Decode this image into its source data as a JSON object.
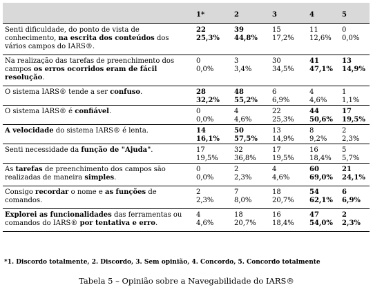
{
  "header": {
    "empty": "",
    "cols": [
      "1*",
      "2",
      "3",
      "4",
      "5"
    ]
  },
  "rows": [
    {
      "parts": [
        {
          "t": "Senti dificuldade, do ponto de vista de conhecimento, ",
          "b": false
        },
        {
          "t": "na escrita dos conteúdos",
          "b": true
        },
        {
          "t": " dos vários campos do IARS®.",
          "b": false
        }
      ],
      "cells": [
        {
          "n": "22",
          "p": "25,3%",
          "bold": true
        },
        {
          "n": "39",
          "p": "44,8%",
          "bold": true
        },
        {
          "n": "15",
          "p": "17,2%",
          "bold": false
        },
        {
          "n": "11",
          "p": "12,6%",
          "bold": false
        },
        {
          "n": "0",
          "p": "0,0%",
          "bold": false
        }
      ]
    },
    {
      "parts": [
        {
          "t": "Na realização das tarefas de preenchimento dos campos ",
          "b": false
        },
        {
          "t": "os erros ocorridos eram de fácil resolução",
          "b": true
        },
        {
          "t": ".",
          "b": false
        }
      ],
      "cells": [
        {
          "n": "0",
          "p": "0,0%",
          "bold": false
        },
        {
          "n": "3",
          "p": "3,4%",
          "bold": false
        },
        {
          "n": "30",
          "p": "34,5%",
          "bold": false
        },
        {
          "n": "41",
          "p": "47,1%",
          "bold": true
        },
        {
          "n": "13",
          "p": "14,9%",
          "bold": true
        }
      ]
    },
    {
      "parts": [
        {
          "t": "O sistema IARS® tende a ser ",
          "b": false
        },
        {
          "t": "confuso",
          "b": true
        },
        {
          "t": ".",
          "b": false
        }
      ],
      "cells": [
        {
          "n": "28",
          "p": "32,2%",
          "bold": true
        },
        {
          "n": "48",
          "p": "55,2%",
          "bold": true
        },
        {
          "n": "6",
          "p": "6,9%",
          "bold": false
        },
        {
          "n": "4",
          "p": "4,6%",
          "bold": false
        },
        {
          "n": "1",
          "p": "1,1%",
          "bold": false
        }
      ]
    },
    {
      "parts": [
        {
          "t": "O sistema IARS® é ",
          "b": false
        },
        {
          "t": "confiável",
          "b": true
        },
        {
          "t": ".",
          "b": false
        }
      ],
      "cells": [
        {
          "n": "0",
          "p": "0,0%",
          "bold": false
        },
        {
          "n": "4",
          "p": "4,6%",
          "bold": false
        },
        {
          "n": "22",
          "p": "25,3%",
          "bold": false
        },
        {
          "n": "44",
          "p": "50,6%",
          "bold": true
        },
        {
          "n": "17",
          "p": "19,5%",
          "bold": true
        }
      ]
    },
    {
      "parts": [
        {
          "t": "A velocidade",
          "b": true
        },
        {
          "t": " do sistema IARS® é lenta.",
          "b": false
        }
      ],
      "cells": [
        {
          "n": "14",
          "p": "16,1%",
          "bold": true
        },
        {
          "n": "50",
          "p": "57,5%",
          "bold": true
        },
        {
          "n": "13",
          "p": "14,9%",
          "bold": false
        },
        {
          "n": "8",
          "p": "9,2%",
          "bold": false
        },
        {
          "n": "2",
          "p": "2,3%",
          "bold": false
        }
      ]
    },
    {
      "parts": [
        {
          "t": "Senti necessidade da ",
          "b": false
        },
        {
          "t": "função de \"Ajuda\"",
          "b": true
        },
        {
          "t": ".",
          "b": false
        }
      ],
      "cells": [
        {
          "n": "17",
          "p": "19,5%",
          "bold": false
        },
        {
          "n": "32",
          "p": "36,8%",
          "bold": false
        },
        {
          "n": "17",
          "p": "19,5%",
          "bold": false
        },
        {
          "n": "16",
          "p": "18,4%",
          "bold": false
        },
        {
          "n": "5",
          "p": "5,7%",
          "bold": false
        }
      ]
    },
    {
      "parts": [
        {
          "t": "As ",
          "b": false
        },
        {
          "t": "tarefas",
          "b": true
        },
        {
          "t": " de preenchimento dos campos são realizadas de maneira ",
          "b": false
        },
        {
          "t": "simples",
          "b": true
        },
        {
          "t": ".",
          "b": false
        }
      ],
      "cells": [
        {
          "n": "0",
          "p": "0,0%",
          "bold": false
        },
        {
          "n": "2",
          "p": "2,3%",
          "bold": false
        },
        {
          "n": "4",
          "p": "4,6%",
          "bold": false
        },
        {
          "n": "60",
          "p": "69,0%",
          "bold": true
        },
        {
          "n": "21",
          "p": "24,1%",
          "bold": true
        }
      ]
    },
    {
      "parts": [
        {
          "t": "Consigo ",
          "b": false
        },
        {
          "t": "recordar",
          "b": true
        },
        {
          "t": " o nome e ",
          "b": false
        },
        {
          "t": "as funções",
          "b": true
        },
        {
          "t": " de comandos.",
          "b": false
        }
      ],
      "cells": [
        {
          "n": "2",
          "p": "2,3%",
          "bold": false
        },
        {
          "n": "7",
          "p": "8,0%",
          "bold": false
        },
        {
          "n": "18",
          "p": "20,7%",
          "bold": false
        },
        {
          "n": "54",
          "p": "62,1%",
          "bold": true
        },
        {
          "n": "6",
          "p": "6,9%",
          "bold": true
        }
      ]
    },
    {
      "parts": [
        {
          "t": "Explorei as funcionalidades",
          "b": true
        },
        {
          "t": " das ferramentas ou comandos do IARS® ",
          "b": false
        },
        {
          "t": "por tentativa e erro",
          "b": true
        },
        {
          "t": ".",
          "b": false
        }
      ],
      "cells": [
        {
          "n": "4",
          "p": "4,6%",
          "bold": false
        },
        {
          "n": "18",
          "p": "20,7%",
          "bold": false
        },
        {
          "n": "16",
          "p": "18,4%",
          "bold": false
        },
        {
          "n": "47",
          "p": "54,0%",
          "bold": true
        },
        {
          "n": "2",
          "p": "2,3%",
          "bold": true
        }
      ]
    }
  ],
  "footnote": "*1. Discordo totalmente, 2. Discordo, 3. Sem opinião, 4. Concordo, 5. Concordo totalmente",
  "caption": "Tabela 5 – Opinião sobre a Navegabilidade do IARS®"
}
